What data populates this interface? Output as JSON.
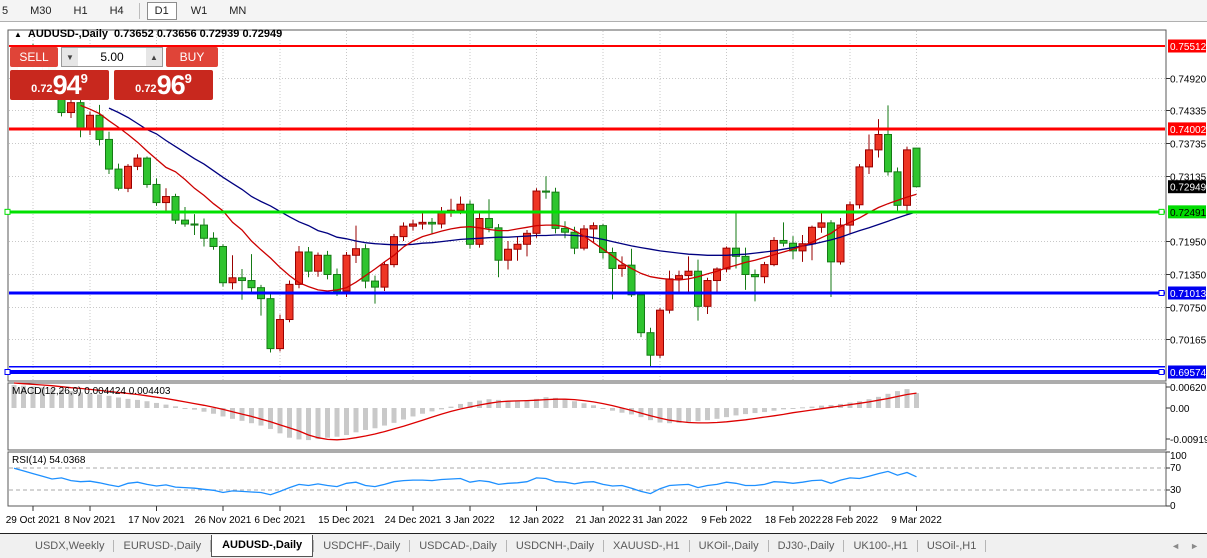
{
  "toolbar": {
    "timeframes": [
      {
        "label": "5",
        "active": false
      },
      {
        "label": "M30",
        "active": false
      },
      {
        "label": "H1",
        "active": false
      },
      {
        "label": "H4",
        "active": false
      },
      {
        "label": "D1",
        "active": true
      },
      {
        "label": "W1",
        "active": false
      },
      {
        "label": "MN",
        "active": false
      }
    ]
  },
  "title": {
    "arrow": "▲",
    "symbol": "AUDUSD-,Daily",
    "ohlc": "0.73652 0.73656 0.72939 0.72949"
  },
  "trade": {
    "sell_label": "SELL",
    "buy_label": "BUY",
    "volume": "5.00",
    "vol_down_icon": "▼",
    "vol_up_icon": "▲",
    "sell_prefix": "0.72",
    "sell_big": "94",
    "sell_pip": "9",
    "buy_prefix": "0.72",
    "buy_big": "96",
    "buy_pip": "9"
  },
  "tabs": {
    "scroll_left": "◄",
    "scroll_right": "►",
    "items": [
      {
        "label": "USDX,Weekly",
        "active": false
      },
      {
        "label": "EURUSD-,Daily",
        "active": false
      },
      {
        "label": "AUDUSD-,Daily",
        "active": true
      },
      {
        "label": "USDCHF-,Daily",
        "active": false
      },
      {
        "label": "USDCAD-,Daily",
        "active": false
      },
      {
        "label": "USDCNH-,Daily",
        "active": false
      },
      {
        "label": "XAUUSD-,H1",
        "active": false
      },
      {
        "label": "UKOil-,Daily",
        "active": false
      },
      {
        "label": "DJ30-,Daily",
        "active": false
      },
      {
        "label": "UK100-,H1",
        "active": false
      },
      {
        "label": "USOil-,H1",
        "active": false
      }
    ]
  },
  "chart_data": {
    "type": "candlestick",
    "symbol": "AUDUSD-,Daily",
    "ohlc_display": {
      "open": "0.73652",
      "high": "0.73656",
      "low": "0.72939",
      "close": "0.72949"
    },
    "colors": {
      "bull_fill": "#ee3524",
      "bull_edge": "#990000",
      "bear_fill": "#2fc42f",
      "bear_edge": "#157a15",
      "ma_fast": "#cc0000",
      "ma_slow": "#000080",
      "macd_hist": "#c9c9c9",
      "macd_signal": "#dd0000",
      "rsi_line": "#1e90ff",
      "grid": "#c8c8c8",
      "badge_red": "#ff0000",
      "badge_green": "#00dc00",
      "badge_blue": "#0000f0",
      "badge_black": "#000000"
    },
    "price_axis": {
      "ticks": [
        "0.74920",
        "0.74335",
        "0.73735",
        "0.73135",
        "0.71950",
        "0.71350",
        "0.70750",
        "0.70165"
      ],
      "badges": [
        {
          "value": "0.75512",
          "type": "red"
        },
        {
          "value": "0.74002",
          "type": "red"
        },
        {
          "value": "0.72949",
          "type": "black"
        },
        {
          "value": "0.72491",
          "type": "green"
        },
        {
          "value": "0.71013",
          "type": "blue"
        },
        {
          "value": "0.69574",
          "type": "blue"
        }
      ]
    },
    "x_axis": {
      "labels": [
        "29 Oct 2021",
        "8 Nov 2021",
        "17 Nov 2021",
        "26 Nov 2021",
        "6 Dec 2021",
        "15 Dec 2021",
        "24 Dec 2021",
        "3 Jan 2022",
        "12 Jan 2022",
        "21 Jan 2022",
        "31 Jan 2022",
        "9 Feb 2022",
        "18 Feb 2022",
        "28 Feb 2022",
        "9 Mar 2022"
      ],
      "tick_candle_indices": [
        2,
        8,
        15,
        22,
        28,
        35,
        42,
        48,
        55,
        62,
        68,
        75,
        82,
        88,
        95
      ]
    },
    "hlines": [
      {
        "price": 0.75512,
        "color": "#ff0000",
        "width": 2,
        "badge": "red",
        "handles": []
      },
      {
        "price": 0.74002,
        "color": "#ff0000",
        "width": 3,
        "badge": "red",
        "handles": []
      },
      {
        "price": 0.72491,
        "color": "#00e100",
        "width": 3,
        "badge": "green",
        "handles": [
          5,
          1159
        ]
      },
      {
        "price": 0.71013,
        "color": "#0000ff",
        "width": 3,
        "badge": "blue",
        "handles": [
          1159
        ]
      },
      {
        "price": 0.6967,
        "color": "#0000ff",
        "width": 1.5,
        "badge": null,
        "handles": []
      },
      {
        "price": 0.69574,
        "color": "#0000ff",
        "width": 4,
        "badge": "blue",
        "handles": [
          5,
          1159
        ]
      }
    ],
    "current_price": 0.72949,
    "candles": [
      [
        0.7496,
        0.7536,
        0.7492,
        0.753
      ],
      [
        0.753,
        0.7543,
        0.7518,
        0.7536
      ],
      [
        0.7536,
        0.7555,
        0.751,
        0.7518
      ],
      [
        0.7518,
        0.7535,
        0.7504,
        0.7522
      ],
      [
        0.7522,
        0.7527,
        0.7453,
        0.746
      ],
      [
        0.746,
        0.747,
        0.7423,
        0.743
      ],
      [
        0.743,
        0.7455,
        0.742,
        0.7448
      ],
      [
        0.7448,
        0.7455,
        0.7385,
        0.7399
      ],
      [
        0.7399,
        0.7432,
        0.7389,
        0.7425
      ],
      [
        0.7425,
        0.7444,
        0.737,
        0.7381
      ],
      [
        0.7381,
        0.7395,
        0.7318,
        0.7327
      ],
      [
        0.7327,
        0.7337,
        0.7288,
        0.7292
      ],
      [
        0.7292,
        0.7336,
        0.7285,
        0.7332
      ],
      [
        0.7332,
        0.7354,
        0.7325,
        0.7347
      ],
      [
        0.7347,
        0.735,
        0.7293,
        0.7299
      ],
      [
        0.7299,
        0.731,
        0.726,
        0.7266
      ],
      [
        0.7266,
        0.7292,
        0.725,
        0.7277
      ],
      [
        0.7277,
        0.7282,
        0.7227,
        0.7234
      ],
      [
        0.7234,
        0.7258,
        0.7222,
        0.7227
      ],
      [
        0.7227,
        0.7245,
        0.7207,
        0.7225
      ],
      [
        0.7225,
        0.7237,
        0.7186,
        0.7201
      ],
      [
        0.7201,
        0.7212,
        0.718,
        0.7186
      ],
      [
        0.7186,
        0.719,
        0.7113,
        0.712
      ],
      [
        0.712,
        0.717,
        0.7108,
        0.7129
      ],
      [
        0.7129,
        0.7145,
        0.7089,
        0.7124
      ],
      [
        0.7124,
        0.7172,
        0.7101,
        0.7111
      ],
      [
        0.7111,
        0.7116,
        0.706,
        0.7091
      ],
      [
        0.7091,
        0.7103,
        0.6993,
        0.7
      ],
      [
        0.7,
        0.7062,
        0.6995,
        0.7053
      ],
      [
        0.7053,
        0.7124,
        0.7048,
        0.7117
      ],
      [
        0.7117,
        0.7187,
        0.711,
        0.7176
      ],
      [
        0.7176,
        0.7185,
        0.713,
        0.7141
      ],
      [
        0.7141,
        0.7175,
        0.7131,
        0.717
      ],
      [
        0.717,
        0.7178,
        0.7126,
        0.7135
      ],
      [
        0.7135,
        0.7146,
        0.7096,
        0.7105
      ],
      [
        0.7105,
        0.7176,
        0.7094,
        0.717
      ],
      [
        0.717,
        0.7224,
        0.7156,
        0.7182
      ],
      [
        0.7182,
        0.719,
        0.711,
        0.7123
      ],
      [
        0.7123,
        0.7133,
        0.7082,
        0.7112
      ],
      [
        0.7112,
        0.7158,
        0.7105,
        0.7153
      ],
      [
        0.7153,
        0.7209,
        0.7148,
        0.7204
      ],
      [
        0.7204,
        0.723,
        0.7196,
        0.7223
      ],
      [
        0.7223,
        0.7235,
        0.7215,
        0.7227
      ],
      [
        0.7227,
        0.7246,
        0.7217,
        0.723
      ],
      [
        0.723,
        0.7238,
        0.7208,
        0.7227
      ],
      [
        0.7227,
        0.7258,
        0.7219,
        0.7249
      ],
      [
        0.7249,
        0.7273,
        0.724,
        0.7252
      ],
      [
        0.7252,
        0.7277,
        0.7245,
        0.7263
      ],
      [
        0.7263,
        0.727,
        0.7182,
        0.719
      ],
      [
        0.719,
        0.725,
        0.7184,
        0.7237
      ],
      [
        0.7237,
        0.7272,
        0.7212,
        0.722
      ],
      [
        0.722,
        0.7227,
        0.713,
        0.7161
      ],
      [
        0.7161,
        0.7196,
        0.7144,
        0.7181
      ],
      [
        0.7181,
        0.7204,
        0.716,
        0.719
      ],
      [
        0.719,
        0.7216,
        0.7168,
        0.721
      ],
      [
        0.721,
        0.7292,
        0.7202,
        0.7287
      ],
      [
        0.7287,
        0.7314,
        0.7273,
        0.7285
      ],
      [
        0.7285,
        0.7293,
        0.721,
        0.7219
      ],
      [
        0.7219,
        0.7232,
        0.7201,
        0.7212
      ],
      [
        0.7212,
        0.7222,
        0.7172,
        0.7183
      ],
      [
        0.7183,
        0.7225,
        0.7179,
        0.7218
      ],
      [
        0.7218,
        0.723,
        0.7194,
        0.7224
      ],
      [
        0.7224,
        0.7227,
        0.7164,
        0.7175
      ],
      [
        0.7175,
        0.7184,
        0.709,
        0.7146
      ],
      [
        0.7146,
        0.7168,
        0.7131,
        0.7152
      ],
      [
        0.7152,
        0.7182,
        0.7094,
        0.7098
      ],
      [
        0.7098,
        0.7104,
        0.7021,
        0.7029
      ],
      [
        0.7029,
        0.7038,
        0.6966,
        0.6988
      ],
      [
        0.6988,
        0.7074,
        0.6983,
        0.707
      ],
      [
        0.707,
        0.7142,
        0.7064,
        0.7127
      ],
      [
        0.7127,
        0.7142,
        0.7101,
        0.7133
      ],
      [
        0.7133,
        0.7168,
        0.71,
        0.7141
      ],
      [
        0.7141,
        0.7162,
        0.7051,
        0.7077
      ],
      [
        0.7077,
        0.7129,
        0.7063,
        0.7124
      ],
      [
        0.7124,
        0.7148,
        0.7101,
        0.7145
      ],
      [
        0.7145,
        0.7186,
        0.7139,
        0.7183
      ],
      [
        0.7183,
        0.7248,
        0.7146,
        0.7168
      ],
      [
        0.7168,
        0.7184,
        0.7107,
        0.7135
      ],
      [
        0.7135,
        0.7144,
        0.7086,
        0.7131
      ],
      [
        0.7131,
        0.7158,
        0.7119,
        0.7153
      ],
      [
        0.7153,
        0.7203,
        0.715,
        0.7197
      ],
      [
        0.7197,
        0.723,
        0.7186,
        0.7192
      ],
      [
        0.7192,
        0.7205,
        0.7163,
        0.7178
      ],
      [
        0.7178,
        0.7207,
        0.7158,
        0.7191
      ],
      [
        0.7191,
        0.7224,
        0.7161,
        0.7221
      ],
      [
        0.7221,
        0.7246,
        0.7211,
        0.7229
      ],
      [
        0.7229,
        0.7234,
        0.7094,
        0.7158
      ],
      [
        0.7158,
        0.7238,
        0.7153,
        0.7225
      ],
      [
        0.7225,
        0.7268,
        0.7208,
        0.7262
      ],
      [
        0.7262,
        0.7336,
        0.7255,
        0.7331
      ],
      [
        0.7331,
        0.739,
        0.7318,
        0.7362
      ],
      [
        0.7362,
        0.7418,
        0.7348,
        0.739
      ],
      [
        0.739,
        0.7443,
        0.7315,
        0.7322
      ],
      [
        0.7322,
        0.733,
        0.7248,
        0.7261
      ],
      [
        0.7261,
        0.7368,
        0.7244,
        0.7362
      ],
      [
        0.73652,
        0.73656,
        0.72939,
        0.72949
      ]
    ],
    "ma_fast": {
      "start_index": 7,
      "values": [
        0.7443,
        0.7436,
        0.7428,
        0.7415,
        0.7403,
        0.739,
        0.7376,
        0.736,
        0.7345,
        0.733,
        0.7322,
        0.7308,
        0.7292,
        0.7279,
        0.7264,
        0.7251,
        0.723,
        0.7216,
        0.7196,
        0.718,
        0.7165,
        0.7148,
        0.7133,
        0.712,
        0.7113,
        0.7107,
        0.7105,
        0.7107,
        0.7111,
        0.7121,
        0.7133,
        0.7145,
        0.7158,
        0.717,
        0.7185,
        0.7196,
        0.7204,
        0.7209,
        0.7214,
        0.7218,
        0.7221,
        0.7222,
        0.722,
        0.7217,
        0.7215,
        0.7215,
        0.7218,
        0.7221,
        0.7224,
        0.7225,
        0.7225,
        0.7222,
        0.7215,
        0.7205,
        0.7193,
        0.7181,
        0.7169,
        0.7156,
        0.7146,
        0.7137,
        0.7131,
        0.7128,
        0.7126,
        0.7125,
        0.7127,
        0.7131,
        0.7136,
        0.7141,
        0.7147,
        0.7152,
        0.7157,
        0.7161,
        0.7166,
        0.7171,
        0.7176,
        0.7181,
        0.7187,
        0.7194,
        0.7202,
        0.721,
        0.7222,
        0.723,
        0.7238,
        0.7248,
        0.7257,
        0.7264,
        0.727,
        0.7276,
        0.7281
      ]
    },
    "ma_slow": {
      "start_index": 10,
      "values": [
        0.7438,
        0.743,
        0.7421,
        0.741,
        0.7399,
        0.7391,
        0.7379,
        0.7368,
        0.7357,
        0.7346,
        0.7336,
        0.7324,
        0.7312,
        0.7301,
        0.729,
        0.7277,
        0.7268,
        0.726,
        0.725,
        0.724,
        0.7231,
        0.7224,
        0.7215,
        0.721,
        0.7203,
        0.72,
        0.7196,
        0.7193,
        0.7191,
        0.719,
        0.7189,
        0.7189,
        0.719,
        0.7192,
        0.7193,
        0.7195,
        0.7197,
        0.7199,
        0.72,
        0.7201,
        0.7202,
        0.7203,
        0.7203,
        0.7204,
        0.7205,
        0.7206,
        0.7206,
        0.7207,
        0.7207,
        0.7206,
        0.7205,
        0.7202,
        0.7199,
        0.7195,
        0.7191,
        0.7187,
        0.7184,
        0.7181,
        0.7178,
        0.7176,
        0.7174,
        0.7172,
        0.7171,
        0.717,
        0.717,
        0.717,
        0.7171,
        0.7172,
        0.7174,
        0.7176,
        0.7178,
        0.7181,
        0.7184,
        0.7187,
        0.719,
        0.7194,
        0.7198,
        0.7203,
        0.7209,
        0.7215,
        0.722,
        0.7226,
        0.7232,
        0.7238,
        0.7244,
        0.7249
      ]
    },
    "macd": {
      "label": "MACD(12,26,9)",
      "values_text": "0.004424 0.004403",
      "axis": [
        "0.006201",
        "0.00",
        "-0.00919"
      ],
      "main_x1e4": [
        68,
        66,
        64,
        61,
        58,
        54,
        50,
        46,
        43,
        40,
        36,
        31,
        27,
        24,
        20,
        15,
        10,
        5,
        0,
        -5,
        -11,
        -17,
        -25,
        -32,
        -38,
        -45,
        -52,
        -62,
        -75,
        -88,
        -93,
        -95,
        -92,
        -88,
        -85,
        -80,
        -72,
        -65,
        -60,
        -52,
        -44,
        -34,
        -25,
        -17,
        -10,
        -4,
        4,
        12,
        18,
        22,
        26,
        24,
        21,
        20,
        22,
        27,
        32,
        30,
        26,
        20,
        14,
        8,
        0,
        -8,
        -14,
        -19,
        -27,
        -36,
        -43,
        -45,
        -44,
        -41,
        -39,
        -36,
        -32,
        -27,
        -22,
        -18,
        -15,
        -12,
        -8,
        -4,
        -1,
        2,
        4,
        7,
        9,
        12,
        16,
        20,
        26,
        33,
        42,
        50,
        56,
        44
      ],
      "signal_x1e4": [
        74,
        72,
        70,
        68,
        66,
        63,
        60,
        58,
        55,
        52,
        49,
        46,
        43,
        40,
        36,
        32,
        28,
        23,
        18,
        13,
        8,
        2,
        -4,
        -11,
        -18,
        -25,
        -33,
        -41,
        -50,
        -59,
        -68,
        -80,
        -88,
        -93,
        -94,
        -92,
        -88,
        -83,
        -77,
        -70,
        -62,
        -54,
        -45,
        -36,
        -27,
        -18,
        -10,
        -3,
        3,
        9,
        14,
        18,
        20,
        21,
        22,
        23,
        25,
        26,
        26,
        25,
        22,
        18,
        13,
        7,
        0,
        -7,
        -15,
        -23,
        -30,
        -36,
        -40,
        -43,
        -44,
        -44,
        -43,
        -41,
        -38,
        -35,
        -31,
        -27,
        -23,
        -19,
        -14,
        -10,
        -6,
        -2,
        2,
        6,
        10,
        14,
        18,
        23,
        28,
        34,
        40,
        44
      ]
    },
    "rsi": {
      "label": "RSI(14)",
      "value_text": "54.0368",
      "axis": [
        "100",
        "70",
        "30",
        "0"
      ],
      "levels": [
        70,
        30
      ],
      "values": [
        70,
        65,
        60,
        55,
        50,
        52,
        47,
        45,
        46,
        43,
        39,
        36,
        42,
        44,
        40,
        37,
        39,
        35,
        34,
        33,
        31,
        29,
        25,
        28,
        27,
        26,
        25,
        21,
        27,
        34,
        40,
        38,
        41,
        38,
        36,
        42,
        44,
        38,
        36,
        40,
        45,
        47,
        48,
        48,
        47,
        49,
        50,
        51,
        44,
        47,
        45,
        40,
        42,
        43,
        45,
        52,
        51,
        45,
        44,
        41,
        44,
        45,
        40,
        37,
        38,
        33,
        27,
        23,
        32,
        38,
        39,
        40,
        34,
        38,
        40,
        44,
        42,
        38,
        38,
        40,
        45,
        44,
        42,
        44,
        47,
        48,
        42,
        48,
        52,
        51,
        55,
        60,
        64,
        57,
        62,
        54
      ]
    }
  }
}
